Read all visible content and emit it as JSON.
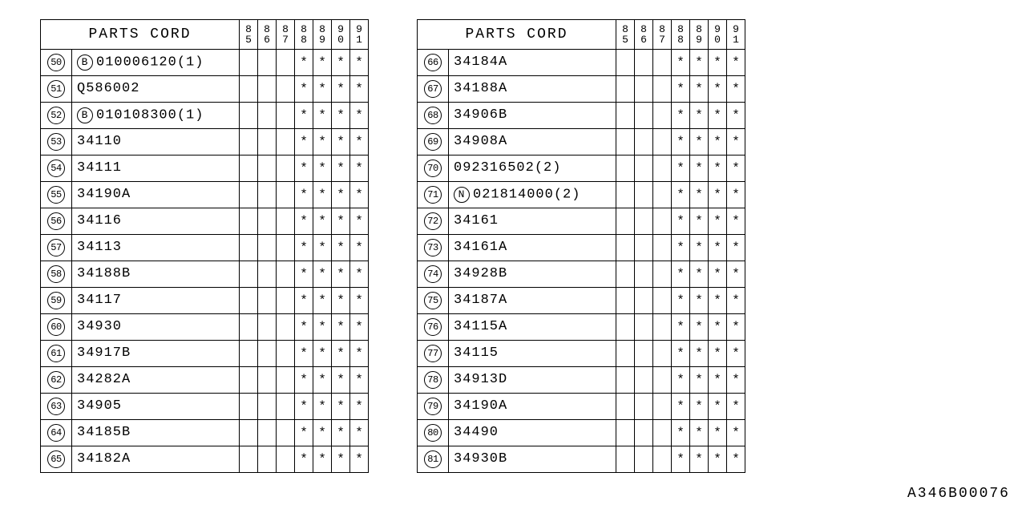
{
  "header_title": "PARTS CORD",
  "years": [
    "85",
    "86",
    "87",
    "88",
    "89",
    "90",
    "91"
  ],
  "mark": "*",
  "doc_id": "A346B00076",
  "tables": [
    {
      "rows": [
        {
          "idx": "50",
          "prefix": "B",
          "part": "010006120(1)",
          "marks": [
            "",
            "",
            "",
            "*",
            "*",
            "*",
            "*"
          ]
        },
        {
          "idx": "51",
          "prefix": "",
          "part": "Q586002",
          "marks": [
            "",
            "",
            "",
            "*",
            "*",
            "*",
            "*"
          ]
        },
        {
          "idx": "52",
          "prefix": "B",
          "part": "010108300(1)",
          "marks": [
            "",
            "",
            "",
            "*",
            "*",
            "*",
            "*"
          ]
        },
        {
          "idx": "53",
          "prefix": "",
          "part": "34110",
          "marks": [
            "",
            "",
            "",
            "*",
            "*",
            "*",
            "*"
          ]
        },
        {
          "idx": "54",
          "prefix": "",
          "part": "34111",
          "marks": [
            "",
            "",
            "",
            "*",
            "*",
            "*",
            "*"
          ]
        },
        {
          "idx": "55",
          "prefix": "",
          "part": "34190A",
          "marks": [
            "",
            "",
            "",
            "*",
            "*",
            "*",
            "*"
          ]
        },
        {
          "idx": "56",
          "prefix": "",
          "part": "34116",
          "marks": [
            "",
            "",
            "",
            "*",
            "*",
            "*",
            "*"
          ]
        },
        {
          "idx": "57",
          "prefix": "",
          "part": "34113",
          "marks": [
            "",
            "",
            "",
            "*",
            "*",
            "*",
            "*"
          ]
        },
        {
          "idx": "58",
          "prefix": "",
          "part": "34188B",
          "marks": [
            "",
            "",
            "",
            "*",
            "*",
            "*",
            "*"
          ]
        },
        {
          "idx": "59",
          "prefix": "",
          "part": "34117",
          "marks": [
            "",
            "",
            "",
            "*",
            "*",
            "*",
            "*"
          ]
        },
        {
          "idx": "60",
          "prefix": "",
          "part": "34930",
          "marks": [
            "",
            "",
            "",
            "*",
            "*",
            "*",
            "*"
          ]
        },
        {
          "idx": "61",
          "prefix": "",
          "part": "34917B",
          "marks": [
            "",
            "",
            "",
            "*",
            "*",
            "*",
            "*"
          ]
        },
        {
          "idx": "62",
          "prefix": "",
          "part": "34282A",
          "marks": [
            "",
            "",
            "",
            "*",
            "*",
            "*",
            "*"
          ]
        },
        {
          "idx": "63",
          "prefix": "",
          "part": "34905",
          "marks": [
            "",
            "",
            "",
            "*",
            "*",
            "*",
            "*"
          ]
        },
        {
          "idx": "64",
          "prefix": "",
          "part": "34185B",
          "marks": [
            "",
            "",
            "",
            "*",
            "*",
            "*",
            "*"
          ]
        },
        {
          "idx": "65",
          "prefix": "",
          "part": "34182A",
          "marks": [
            "",
            "",
            "",
            "*",
            "*",
            "*",
            "*"
          ]
        }
      ]
    },
    {
      "rows": [
        {
          "idx": "66",
          "prefix": "",
          "part": "34184A",
          "marks": [
            "",
            "",
            "",
            "*",
            "*",
            "*",
            "*"
          ]
        },
        {
          "idx": "67",
          "prefix": "",
          "part": "34188A",
          "marks": [
            "",
            "",
            "",
            "*",
            "*",
            "*",
            "*"
          ]
        },
        {
          "idx": "68",
          "prefix": "",
          "part": "34906B",
          "marks": [
            "",
            "",
            "",
            "*",
            "*",
            "*",
            "*"
          ]
        },
        {
          "idx": "69",
          "prefix": "",
          "part": "34908A",
          "marks": [
            "",
            "",
            "",
            "*",
            "*",
            "*",
            "*"
          ]
        },
        {
          "idx": "70",
          "prefix": "",
          "part": "092316502(2)",
          "marks": [
            "",
            "",
            "",
            "*",
            "*",
            "*",
            "*"
          ]
        },
        {
          "idx": "71",
          "prefix": "N",
          "part": "021814000(2)",
          "marks": [
            "",
            "",
            "",
            "*",
            "*",
            "*",
            "*"
          ]
        },
        {
          "idx": "72",
          "prefix": "",
          "part": "34161",
          "marks": [
            "",
            "",
            "",
            "*",
            "*",
            "*",
            "*"
          ]
        },
        {
          "idx": "73",
          "prefix": "",
          "part": "34161A",
          "marks": [
            "",
            "",
            "",
            "*",
            "*",
            "*",
            "*"
          ]
        },
        {
          "idx": "74",
          "prefix": "",
          "part": "34928B",
          "marks": [
            "",
            "",
            "",
            "*",
            "*",
            "*",
            "*"
          ]
        },
        {
          "idx": "75",
          "prefix": "",
          "part": "34187A",
          "marks": [
            "",
            "",
            "",
            "*",
            "*",
            "*",
            "*"
          ]
        },
        {
          "idx": "76",
          "prefix": "",
          "part": "34115A",
          "marks": [
            "",
            "",
            "",
            "*",
            "*",
            "*",
            "*"
          ]
        },
        {
          "idx": "77",
          "prefix": "",
          "part": "34115",
          "marks": [
            "",
            "",
            "",
            "*",
            "*",
            "*",
            "*"
          ]
        },
        {
          "idx": "78",
          "prefix": "",
          "part": "34913D",
          "marks": [
            "",
            "",
            "",
            "*",
            "*",
            "*",
            "*"
          ]
        },
        {
          "idx": "79",
          "prefix": "",
          "part": "34190A",
          "marks": [
            "",
            "",
            "",
            "*",
            "*",
            "*",
            "*"
          ]
        },
        {
          "idx": "80",
          "prefix": "",
          "part": "34490",
          "marks": [
            "",
            "",
            "",
            "*",
            "*",
            "*",
            "*"
          ]
        },
        {
          "idx": "81",
          "prefix": "",
          "part": "34930B",
          "marks": [
            "",
            "",
            "",
            "*",
            "*",
            "*",
            "*"
          ]
        }
      ]
    }
  ]
}
